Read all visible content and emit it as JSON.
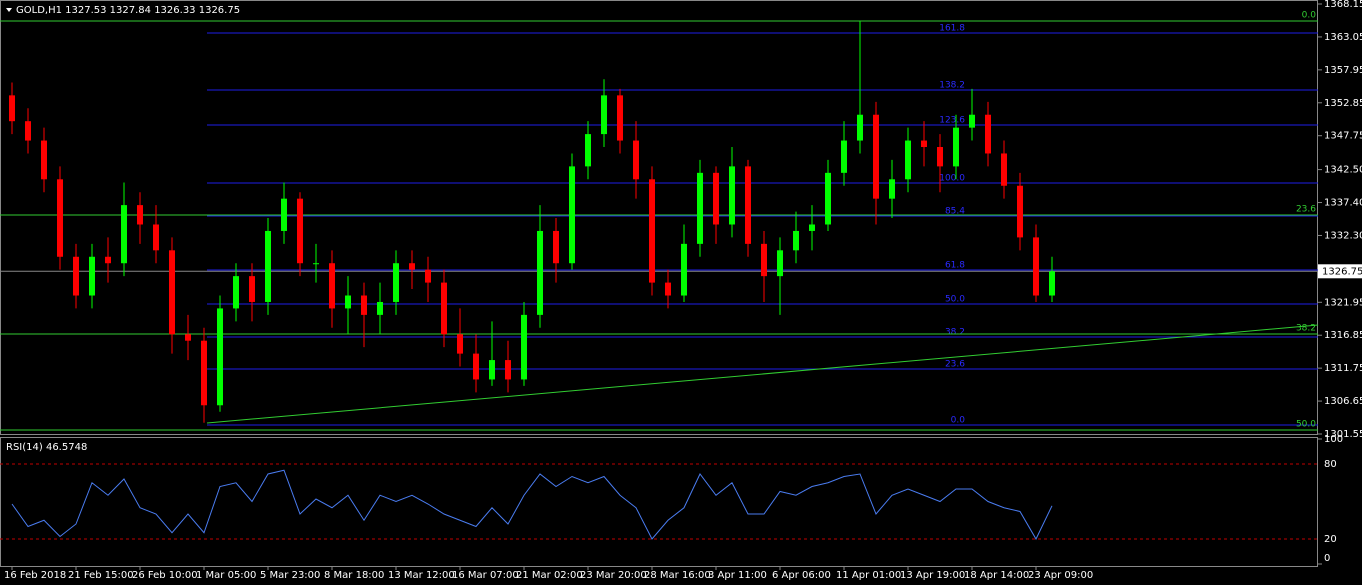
{
  "chart_data": [
    {
      "type": "candlestick",
      "title": "GOLD,H1  1327.53 1327.84 1326.33 1326.75",
      "categories": [
        "16 Feb 2018",
        null,
        null,
        null,
        "21 Feb 15:00",
        null,
        null,
        null,
        "26 Feb 10:00",
        null,
        null,
        null,
        "1 Mar 05:00",
        null,
        null,
        null,
        "5 Mar 23:00",
        null,
        null,
        null,
        "8 Mar 18:00",
        null,
        null,
        null,
        "13 Mar 12:00",
        null,
        null,
        null,
        "16 Mar 07:00",
        null,
        null,
        null,
        "21 Mar 02:00",
        null,
        null,
        null,
        "23 Mar 20:00",
        null,
        null,
        null,
        "28 Mar 16:00",
        null,
        null,
        null,
        "3 Apr 11:00",
        null,
        null,
        null,
        "6 Apr 06:00",
        null,
        null,
        null,
        "11 Apr 01:00",
        null,
        null,
        null,
        "13 Apr 19:00",
        null,
        null,
        null,
        "18 Apr 14:00",
        null,
        null,
        null,
        "23 Apr 09:00",
        null
      ],
      "open": [
        1354,
        1350,
        1347,
        1341,
        1329,
        1323,
        1329,
        1328,
        1337,
        1334,
        1330,
        1317,
        1316,
        1306,
        1321,
        1326,
        1322,
        1333,
        1338,
        1328,
        1328,
        1321,
        1323,
        1320,
        1322,
        1328,
        1327,
        1325,
        1317,
        1314,
        1310,
        1313,
        1310,
        1320,
        1333,
        1328,
        1343,
        1348,
        1354,
        1347,
        1341,
        1325,
        1323,
        1331,
        1342,
        1334,
        1343,
        1331,
        1326,
        1330,
        1333,
        1334,
        1342,
        1347,
        1351,
        1338,
        1341,
        1347,
        1346,
        1343,
        1349,
        1351,
        1345,
        1340,
        1332,
        1323
      ],
      "high": [
        1356,
        1352,
        1349,
        1343,
        1331,
        1331,
        1332,
        1340.5,
        1339,
        1337,
        1332,
        1320,
        1318,
        1323,
        1328,
        1328,
        1335,
        1340.5,
        1339,
        1331,
        1330,
        1326,
        1325,
        1325,
        1330,
        1330,
        1329,
        1327,
        1321,
        1317,
        1319,
        1316,
        1322,
        1337,
        1335,
        1345,
        1350,
        1356.5,
        1355,
        1350,
        1343,
        1327,
        1334,
        1344,
        1343,
        1346,
        1344,
        1333,
        1332,
        1336,
        1337,
        1344,
        1350,
        1365.5,
        1353,
        1344,
        1349,
        1350,
        1348,
        1351,
        1355,
        1353,
        1347,
        1342,
        1334,
        1329
      ],
      "low": [
        1348,
        1345,
        1339,
        1327,
        1321,
        1321,
        1325,
        1326,
        1331,
        1328,
        1314,
        1313,
        1303.3,
        1305,
        1319,
        1319,
        1320,
        1331,
        1326,
        1325,
        1318,
        1317,
        1315,
        1317,
        1320,
        1324,
        1322,
        1315,
        1312,
        1308,
        1309,
        1308,
        1309,
        1318,
        1325,
        1327,
        1341,
        1346,
        1345,
        1338,
        1323,
        1321,
        1322,
        1329,
        1331,
        1332,
        1329,
        1322,
        1320,
        1328,
        1330,
        1333,
        1340,
        1345,
        1334,
        1335,
        1339,
        1343,
        1339,
        1341,
        1347,
        1343,
        1338,
        1330,
        1322,
        1322
      ],
      "close": [
        1350,
        1347,
        1341,
        1329,
        1323,
        1329,
        1328,
        1337,
        1334,
        1330,
        1317,
        1316,
        1306,
        1321,
        1326,
        1322,
        1333,
        1338,
        1328,
        1328,
        1321,
        1323,
        1320,
        1322,
        1328,
        1327,
        1325,
        1317,
        1314,
        1310,
        1313,
        1310,
        1320,
        1333,
        1328,
        1343,
        1348,
        1354,
        1347,
        1341,
        1325,
        1323,
        1331,
        1342,
        1334,
        1343,
        1331,
        1326,
        1330,
        1333,
        1334,
        1342,
        1347,
        1351,
        1338,
        1341,
        1347,
        1346,
        1343,
        1349,
        1351,
        1345,
        1340,
        1332,
        1323,
        1326.75
      ],
      "up_color": "#00ff00",
      "down_color": "#ff0000",
      "ylim": [
        1301.55,
        1368.15
      ],
      "yticks": [
        1368.15,
        1363.05,
        1357.95,
        1352.85,
        1347.75,
        {
          "value": 1342.5,
          "label": "1342.50"
        },
        {
          "value": 1337.4,
          "label": "1337.40"
        },
        {
          "value": 1332.3,
          "label": "1332.30"
        },
        1321.95,
        1316.85,
        1311.75,
        1306.65,
        1301.55
      ],
      "current_price": 1326.75,
      "fib_levels": [
        {
          "label": "161.8",
          "price": 1363.66
        },
        {
          "label": "138.2",
          "price": 1354.83
        },
        {
          "label": "123.6",
          "price": 1349.41
        },
        {
          "label": "100.0",
          "price": 1340.42
        },
        {
          "label": "85.4",
          "price": 1335.31
        },
        {
          "label": "61.8",
          "price": 1326.95
        },
        {
          "label": "50.0",
          "price": 1321.68
        },
        {
          "label": "38.2",
          "price": 1316.57
        },
        {
          "label": "23.6",
          "price": 1311.61
        },
        {
          "label": "0.0",
          "price": 1302.94
        }
      ],
      "green_levels": [
        {
          "label": "0.0",
          "price": 1365.52
        },
        {
          "label": "23.6",
          "price": 1335.47
        },
        {
          "label": "38.2",
          "price": 1317.04
        },
        {
          "label": "50.0",
          "price": 1302.17
        }
      ],
      "trendline": {
        "from": 1303.25,
        "to": 1318.43
      }
    },
    {
      "type": "line",
      "title": "RSI(14) 46.5748",
      "color": "#4a7cf0",
      "values": [
        48,
        30,
        35,
        22,
        32,
        65,
        55,
        68,
        45,
        40,
        25,
        40,
        25,
        62,
        65,
        50,
        72,
        75,
        40,
        52,
        45,
        55,
        35,
        55,
        50,
        55,
        48,
        40,
        35,
        30,
        45,
        32,
        55,
        72,
        62,
        70,
        65,
        70,
        55,
        45,
        20,
        35,
        45,
        72,
        55,
        65,
        40,
        40,
        58,
        55,
        62,
        65,
        70,
        72,
        40,
        55,
        60,
        55,
        50,
        60,
        60,
        50,
        45,
        42,
        20,
        46.57
      ],
      "ylim": [
        0,
        100
      ],
      "yticks": [
        100,
        80,
        20,
        0
      ]
    }
  ]
}
